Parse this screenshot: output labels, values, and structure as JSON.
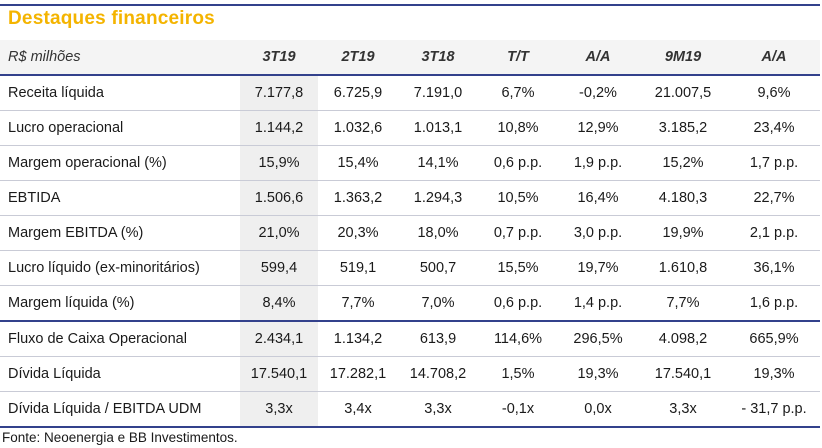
{
  "title": "Destaques financeiros",
  "table": {
    "headers": [
      "R$ milhões",
      "3T19",
      "2T19",
      "3T18",
      "T/T",
      "A/A",
      "9M19",
      "A/A"
    ],
    "rows": [
      [
        "Receita líquida",
        "7.177,8",
        "6.725,9",
        "7.191,0",
        "6,7%",
        "-0,2%",
        "21.007,5",
        "9,6%"
      ],
      [
        "Lucro operacional",
        "1.144,2",
        "1.032,6",
        "1.013,1",
        "10,8%",
        "12,9%",
        "3.185,2",
        "23,4%"
      ],
      [
        "Margem operacional (%)",
        "15,9%",
        "15,4%",
        "14,1%",
        "0,6 p.p.",
        "1,9 p.p.",
        "15,2%",
        "1,7 p.p."
      ],
      [
        "EBTIDA",
        "1.506,6",
        "1.363,2",
        "1.294,3",
        "10,5%",
        "16,4%",
        "4.180,3",
        "22,7%"
      ],
      [
        "Margem EBITDA (%)",
        "21,0%",
        "20,3%",
        "18,0%",
        "0,7 p.p.",
        "3,0 p.p.",
        "19,9%",
        "2,1 p.p."
      ],
      [
        "Lucro líquido (ex-minoritários)",
        "599,4",
        "519,1",
        "500,7",
        "15,5%",
        "19,7%",
        "1.610,8",
        "36,1%"
      ],
      [
        "Margem líquida (%)",
        "8,4%",
        "7,7%",
        "7,0%",
        "0,6 p.p.",
        "1,4 p.p.",
        "7,7%",
        "1,6 p.p."
      ],
      [
        "Fluxo de Caixa Operacional",
        "2.434,1",
        "1.134,2",
        "613,9",
        "114,6%",
        "296,5%",
        "4.098,2",
        "665,9%"
      ],
      [
        "Dívida Líquida",
        "17.540,1",
        "17.282,1",
        "14.708,2",
        "1,5%",
        "19,3%",
        "17.540,1",
        "19,3%"
      ],
      [
        "Dívida Líquida / EBITDA UDM",
        "3,3x",
        "3,4x",
        "3,3x",
        "-0,1x",
        "0,0x",
        "3,3x",
        "- 31,7 p.p."
      ]
    ]
  },
  "source": "Fonte: Neoenergia e BB Investimentos."
}
